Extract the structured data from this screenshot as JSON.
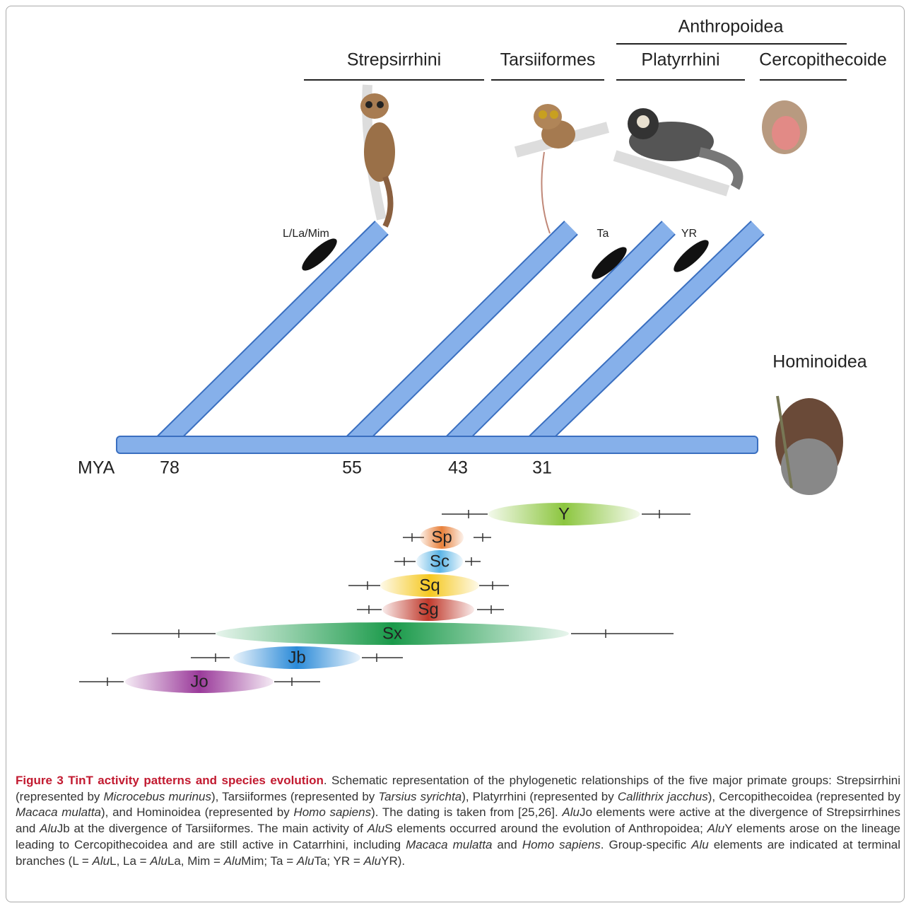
{
  "figure": {
    "super_group": "Anthropoidea",
    "groups": [
      "Strepsirrhini",
      "Tarsiiformes",
      "Platyrrhini",
      "Cercopithecoide"
    ],
    "branch_labels": [
      "L/La/Mim",
      "Ta",
      "YR"
    ],
    "outgroup": "Hominoidea",
    "axis_label": "MYA",
    "divergences": [
      "78",
      "55",
      "43",
      "31"
    ],
    "elements": [
      "Y",
      "Sp",
      "Sc",
      "Sq",
      "Sg",
      "Sx",
      "Jb",
      "Jo"
    ]
  },
  "caption": {
    "runs": [
      {
        "text": "Figure 3 TinT activity patterns and species evolution",
        "bold": true
      },
      {
        "text": ". Schematic representation of the phylogenetic relationships of the five major primate groups: Strepsirrhini (represented by "
      },
      {
        "text": "Microcebus murinus",
        "italic": true
      },
      {
        "text": "), Tarsiiformes (represented by "
      },
      {
        "text": "Tarsius syrichta",
        "italic": true
      },
      {
        "text": "), Platyrrhini (represented by "
      },
      {
        "text": "Callithrix jacchus",
        "italic": true
      },
      {
        "text": "), Cercopithecoidea (represented by "
      },
      {
        "text": "Macaca mulatta",
        "italic": true
      },
      {
        "text": "), and Hominoidea (represented by "
      },
      {
        "text": "Homo sapiens",
        "italic": true
      },
      {
        "text": "). The dating is taken from [25,26]. "
      },
      {
        "text": "Alu",
        "italic": true
      },
      {
        "text": "Jo elements were active at the divergence of Strepsirrhines and "
      },
      {
        "text": "Alu",
        "italic": true
      },
      {
        "text": "Jb at the divergence of Tarsiiformes. The main activity of "
      },
      {
        "text": "Alu",
        "italic": true
      },
      {
        "text": "S elements occurred around the evolution of Anthropoidea; "
      },
      {
        "text": "Alu",
        "italic": true
      },
      {
        "text": "Y elements arose on the lineage leading to Cercopithecoidea and are still active in Catarrhini, including "
      },
      {
        "text": "Macaca mulatta",
        "italic": true
      },
      {
        "text": " and "
      },
      {
        "text": "Homo sapiens",
        "italic": true
      },
      {
        "text": ". Group-specific "
      },
      {
        "text": "Alu",
        "italic": true
      },
      {
        "text": " elements are indicated at terminal branches (L = "
      },
      {
        "text": "Alu",
        "italic": true
      },
      {
        "text": "L, La = "
      },
      {
        "text": "Alu",
        "italic": true
      },
      {
        "text": "La, Mim = "
      },
      {
        "text": "Alu",
        "italic": true
      },
      {
        "text": "Mim; Ta = "
      },
      {
        "text": "Alu",
        "italic": true
      },
      {
        "text": "Ta; YR = "
      },
      {
        "text": "Alu",
        "italic": true
      },
      {
        "text": "YR)."
      }
    ]
  }
}
